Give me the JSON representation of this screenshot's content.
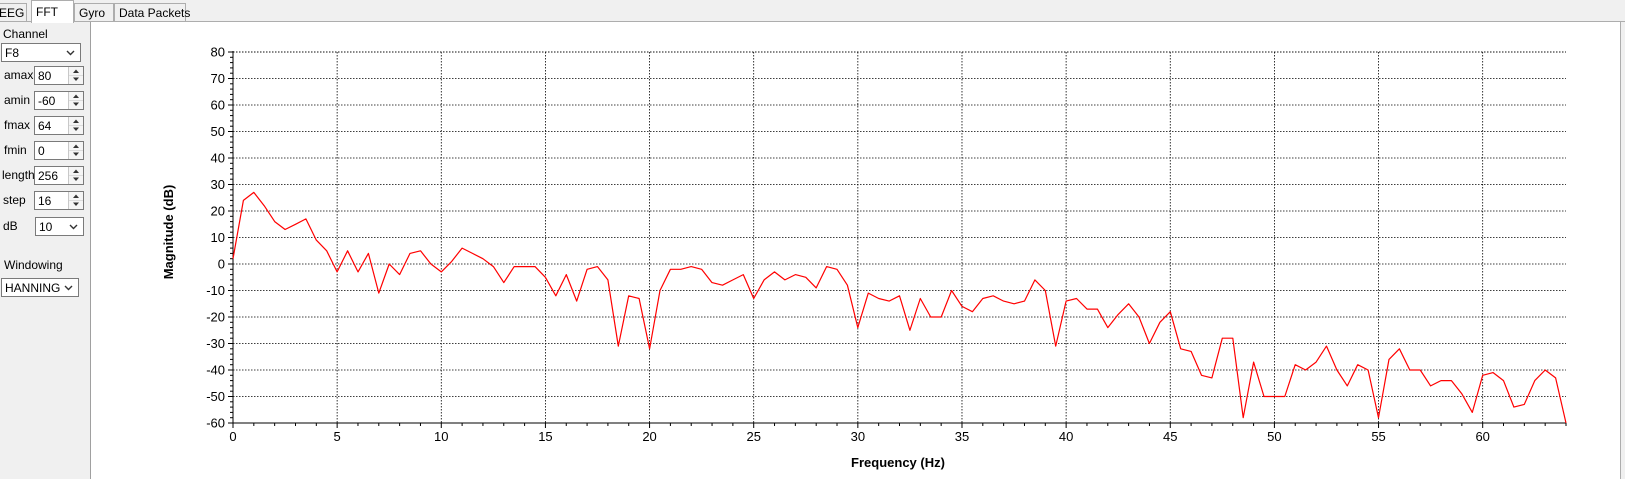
{
  "tabs": [
    {
      "label": "EEG",
      "active": false
    },
    {
      "label": "FFT",
      "active": true
    },
    {
      "label": "Gyro",
      "active": false
    },
    {
      "label": "Data Packets",
      "active": false
    }
  ],
  "controls": {
    "channel_label": "Channel",
    "channel_value": "F8",
    "amax_label": "amax",
    "amax_value": "80",
    "amin_label": "amin",
    "amin_value": "-60",
    "fmax_label": "fmax",
    "fmax_value": "64",
    "fmin_label": "fmin",
    "fmin_value": "0",
    "length_label": "length",
    "length_value": "256",
    "step_label": "step",
    "step_value": "16",
    "db_label": "dB",
    "db_value": "10",
    "windowing_label": "Windowing",
    "windowing_value": "HANNING"
  },
  "chart_data": {
    "type": "line",
    "title": "",
    "xlabel": "Frequency (Hz)",
    "ylabel": "Magnitude (dB)",
    "xlim": [
      0,
      64
    ],
    "ylim": [
      -60,
      80
    ],
    "x_major_ticks": [
      0,
      5,
      10,
      15,
      20,
      25,
      30,
      35,
      40,
      45,
      50,
      55,
      60
    ],
    "y_major_ticks": [
      -60,
      -50,
      -40,
      -30,
      -20,
      -10,
      0,
      10,
      20,
      30,
      40,
      50,
      60,
      70,
      80
    ],
    "grid": true,
    "line_color": "#ff0000",
    "series": [
      {
        "x_start": 0,
        "x_step": 0.5,
        "values": [
          2,
          24,
          27,
          22,
          16,
          13,
          15,
          17,
          9,
          5,
          -3,
          5,
          -3,
          4,
          -11,
          0,
          -4,
          4,
          5,
          0,
          -3,
          1,
          6,
          4,
          2,
          -1,
          -7,
          -1,
          -1,
          -1,
          -5,
          -12,
          -4,
          -14,
          -2,
          -1,
          -6,
          -31,
          -12,
          -13,
          -32,
          -10,
          -2,
          -2,
          -1,
          -2,
          -7,
          -8,
          -6,
          -4,
          -13,
          -6,
          -3,
          -6,
          -4,
          -5,
          -9,
          -1,
          -2,
          -8,
          -24,
          -11,
          -13,
          -14,
          -12,
          -25,
          -13,
          -20,
          -20,
          -10,
          -16,
          -18,
          -13,
          -12,
          -14,
          -15,
          -14,
          -6,
          -10,
          -31,
          -14,
          -13,
          -17,
          -17,
          -24,
          -19,
          -15,
          -20,
          -30,
          -22,
          -18,
          -32,
          -33,
          -42,
          -43,
          -28,
          -28,
          -58,
          -37,
          -50,
          -50,
          -50,
          -38,
          -40,
          -37,
          -31,
          -40,
          -46,
          -38,
          -40,
          -58,
          -36,
          -32,
          -40,
          -40,
          -46,
          -44,
          -44,
          -49,
          -56,
          -42,
          -41,
          -44,
          -54,
          -53,
          -44,
          -40,
          -43,
          -60
        ]
      }
    ]
  }
}
